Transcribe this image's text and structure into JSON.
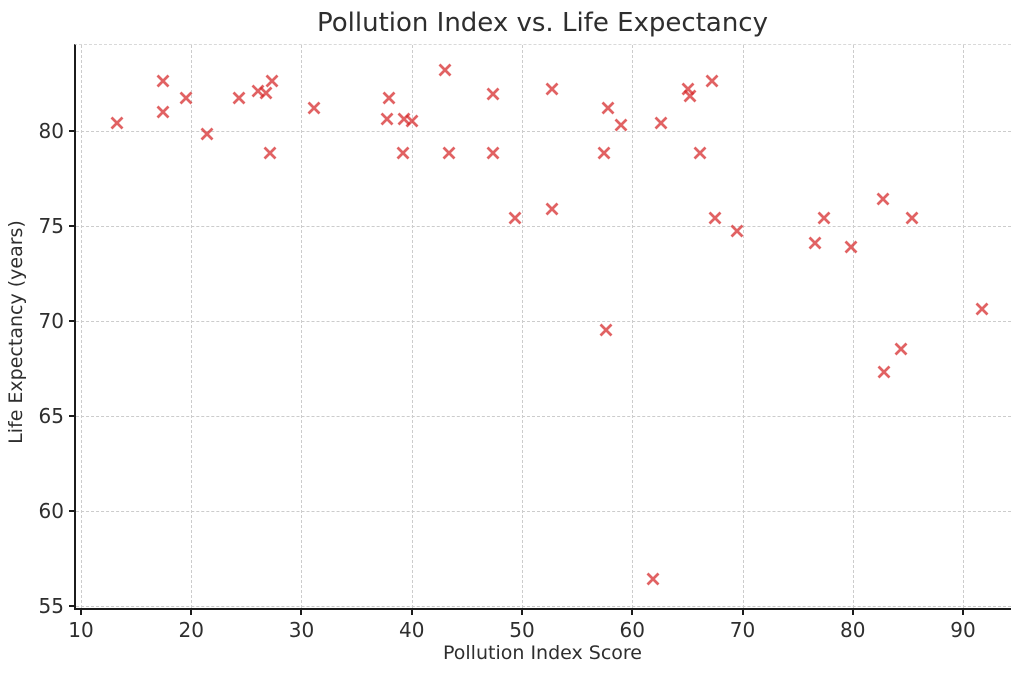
{
  "chart_data": {
    "type": "scatter",
    "title": "Pollution Index vs. Life Expectancy",
    "xlabel": "Pollution Index Score",
    "ylabel": "Life Expectancy (years)",
    "xlim": [
      9.55,
      94.35
    ],
    "ylim": [
      54.9,
      84.5
    ],
    "xticks": [
      10,
      20,
      30,
      40,
      50,
      60,
      70,
      80,
      90
    ],
    "yticks": [
      55,
      60,
      65,
      70,
      75,
      80
    ],
    "grid": "dashed-both",
    "legend": "none",
    "marker": "x",
    "marker_color": "#d62728",
    "marker_opacity": 0.72,
    "points": [
      [
        13.3,
        80.4
      ],
      [
        17.4,
        82.6
      ],
      [
        17.4,
        81.0
      ],
      [
        19.5,
        81.7
      ],
      [
        21.4,
        79.8
      ],
      [
        24.3,
        81.7
      ],
      [
        26.1,
        82.1
      ],
      [
        26.8,
        82.0
      ],
      [
        27.3,
        82.6
      ],
      [
        27.1,
        78.8
      ],
      [
        31.1,
        81.2
      ],
      [
        37.9,
        81.7
      ],
      [
        37.8,
        80.6
      ],
      [
        39.3,
        80.6
      ],
      [
        40.0,
        80.5
      ],
      [
        39.2,
        78.8
      ],
      [
        43.0,
        83.2
      ],
      [
        43.4,
        78.8
      ],
      [
        47.4,
        81.9
      ],
      [
        47.4,
        78.8
      ],
      [
        49.4,
        75.4
      ],
      [
        52.7,
        82.2
      ],
      [
        52.7,
        75.9
      ],
      [
        57.4,
        78.8
      ],
      [
        57.8,
        81.2
      ],
      [
        57.6,
        69.5
      ],
      [
        59.0,
        80.3
      ],
      [
        61.9,
        56.4
      ],
      [
        62.6,
        80.4
      ],
      [
        65.1,
        82.2
      ],
      [
        65.2,
        81.8
      ],
      [
        66.1,
        78.8
      ],
      [
        67.2,
        82.6
      ],
      [
        67.5,
        75.4
      ],
      [
        69.5,
        74.7
      ],
      [
        76.6,
        74.1
      ],
      [
        77.4,
        75.4
      ],
      [
        79.8,
        73.9
      ],
      [
        82.7,
        76.4
      ],
      [
        82.8,
        67.3
      ],
      [
        84.4,
        68.5
      ],
      [
        85.4,
        75.4
      ],
      [
        91.7,
        70.6
      ]
    ]
  }
}
